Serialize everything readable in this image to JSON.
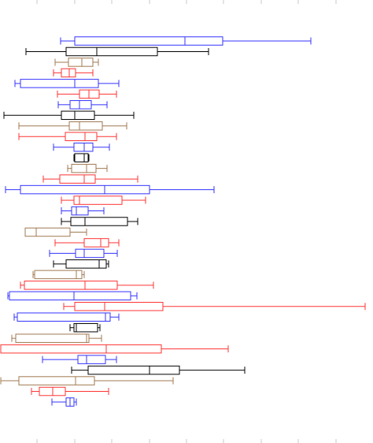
{
  "chart_data": {
    "type": "box",
    "orientation": "horizontal",
    "title": "",
    "xlabel": "",
    "ylabel": "",
    "xlim": [
      0,
      474
    ],
    "grid": false,
    "legend": "none",
    "x_ticks": [
      47,
      95,
      142,
      190,
      237,
      284,
      332,
      379,
      427
    ],
    "tick_labels": [],
    "colors": {
      "blue": "#3333ff",
      "black": "#000000",
      "brown": "#a07850",
      "red": "#ff3333"
    },
    "boxes": [
      {
        "color": "blue",
        "whisker_low": 77,
        "q1": 95,
        "median": 235,
        "q3": 283,
        "whisker_high": 395
      },
      {
        "color": "black",
        "whisker_low": 33,
        "q1": 84,
        "median": 123,
        "q3": 200,
        "whisker_high": 265
      },
      {
        "color": "brown",
        "whisker_low": 70,
        "q1": 87,
        "median": 104,
        "q3": 118,
        "whisker_high": 125
      },
      {
        "color": "red",
        "whisker_low": 68,
        "q1": 78,
        "median": 88,
        "q3": 96,
        "whisker_high": 118
      },
      {
        "color": "blue",
        "whisker_low": 19,
        "q1": 26,
        "median": 95,
        "q3": 125,
        "whisker_high": 151
      },
      {
        "color": "red",
        "whisker_low": 73,
        "q1": 101,
        "median": 113,
        "q3": 126,
        "whisker_high": 148
      },
      {
        "color": "blue",
        "whisker_low": 74,
        "q1": 89,
        "median": 101,
        "q3": 116,
        "whisker_high": 136
      },
      {
        "color": "black",
        "whisker_low": 5,
        "q1": 78,
        "median": 95,
        "q3": 120,
        "whisker_high": 170
      },
      {
        "color": "brown",
        "whisker_low": 24,
        "q1": 88,
        "median": 101,
        "q3": 130,
        "whisker_high": 161
      },
      {
        "color": "red",
        "whisker_low": 24,
        "q1": 83,
        "median": 108,
        "q3": 123,
        "whisker_high": 148
      },
      {
        "color": "blue",
        "whisker_low": 68,
        "q1": 94,
        "median": 107,
        "q3": 118,
        "whisker_high": 139
      },
      {
        "color": "black",
        "whisker_low": 94,
        "q1": 95,
        "median": 107,
        "q3": 112,
        "whisker_high": 113
      },
      {
        "color": "brown",
        "whisker_low": 86,
        "q1": 91,
        "median": 110,
        "q3": 122,
        "whisker_high": 136
      },
      {
        "color": "red",
        "whisker_low": 55,
        "q1": 76,
        "median": 107,
        "q3": 121,
        "whisker_high": 175
      },
      {
        "color": "blue",
        "whisker_low": 7,
        "q1": 26,
        "median": 133,
        "q3": 190,
        "whisker_high": 272
      },
      {
        "color": "red",
        "whisker_low": 78,
        "q1": 94,
        "median": 101,
        "q3": 155,
        "whisker_high": 185
      },
      {
        "color": "blue",
        "whisker_low": 78,
        "q1": 91,
        "median": 97,
        "q3": 112,
        "whisker_high": 132
      },
      {
        "color": "black",
        "whisker_low": 78,
        "q1": 90,
        "median": 108,
        "q3": 162,
        "whisker_high": 175
      },
      {
        "color": "brown",
        "whisker_low": 32,
        "q1": 32,
        "median": 46,
        "q3": 89,
        "whisker_high": 110
      },
      {
        "color": "red",
        "whisker_low": 70,
        "q1": 107,
        "median": 128,
        "q3": 138,
        "whisker_high": 151
      },
      {
        "color": "blue",
        "whisker_low": 63,
        "q1": 96,
        "median": 107,
        "q3": 132,
        "whisker_high": 149
      },
      {
        "color": "black",
        "whisker_low": 68,
        "q1": 84,
        "median": 126,
        "q3": 135,
        "whisker_high": 138
      },
      {
        "color": "brown",
        "whisker_low": 42,
        "q1": 44,
        "median": 97,
        "q3": 104,
        "whisker_high": 107
      },
      {
        "color": "red",
        "whisker_low": 26,
        "q1": 31,
        "median": 108,
        "q3": 149,
        "whisker_high": 195
      },
      {
        "color": "blue",
        "whisker_low": 10,
        "q1": 12,
        "median": 94,
        "q3": 166,
        "whisker_high": 174
      },
      {
        "color": "red",
        "whisker_low": 81,
        "q1": 95,
        "median": 133,
        "q3": 207,
        "whisker_high": 464
      },
      {
        "color": "blue",
        "whisker_low": 18,
        "q1": 22,
        "median": 134,
        "q3": 140,
        "whisker_high": 151
      },
      {
        "color": "black",
        "whisker_low": 89,
        "q1": 94,
        "median": 97,
        "q3": 124,
        "whisker_high": 127
      },
      {
        "color": "brown",
        "whisker_low": 15,
        "q1": 20,
        "median": 110,
        "q3": 113,
        "whisker_high": 129
      },
      {
        "color": "red",
        "whisker_low": 1,
        "q1": 1,
        "median": 135,
        "q3": 205,
        "whisker_high": 290
      },
      {
        "color": "blue",
        "whisker_low": 54,
        "q1": 99,
        "median": 110,
        "q3": 134,
        "whisker_high": 148
      },
      {
        "color": "black",
        "whisker_low": 91,
        "q1": 112,
        "median": 190,
        "q3": 228,
        "whisker_high": 311
      },
      {
        "color": "brown",
        "whisker_low": 1,
        "q1": 24,
        "median": 96,
        "q3": 120,
        "whisker_high": 220
      },
      {
        "color": "red",
        "whisker_low": 40,
        "q1": 50,
        "median": 67,
        "q3": 83,
        "whisker_high": 138
      },
      {
        "color": "blue",
        "whisker_low": 66,
        "q1": 84,
        "median": 89,
        "q3": 94,
        "whisker_high": 97
      }
    ]
  }
}
